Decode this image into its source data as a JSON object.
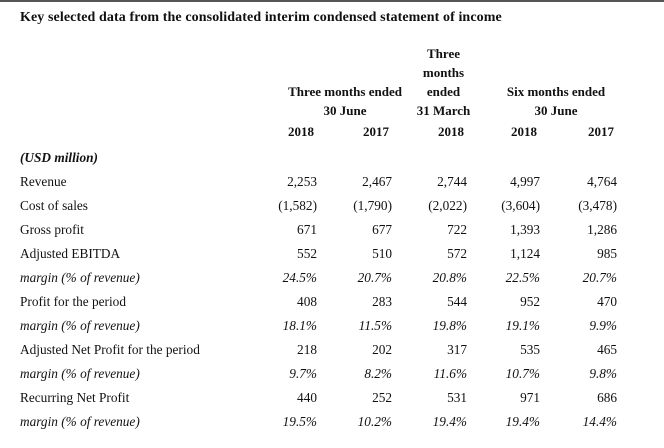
{
  "title": "Key selected data from the consolidated interim condensed statement of income",
  "table": {
    "header": {
      "groups": [
        {
          "lines": [
            "Three months ended",
            "30 June"
          ]
        },
        {
          "lines": [
            "Three",
            "months",
            "ended",
            "31 March"
          ]
        },
        {
          "lines": [
            "Six months ended",
            "30 June"
          ]
        }
      ],
      "years": [
        "2018",
        "2017",
        "2018",
        "2018",
        "2017"
      ]
    },
    "rows": [
      {
        "label": "(USD million)",
        "style": "unit",
        "values": [
          "",
          "",
          "",
          "",
          ""
        ]
      },
      {
        "label": "Revenue",
        "style": "normal",
        "values": [
          "2,253",
          "2,467",
          "2,744",
          "4,997",
          "4,764"
        ]
      },
      {
        "label": "Cost of sales",
        "style": "normal",
        "values": [
          "(1,582)",
          "(1,790)",
          "(2,022)",
          "(3,604)",
          "(3,478)"
        ]
      },
      {
        "label": "Gross profit",
        "style": "normal",
        "values": [
          "671",
          "677",
          "722",
          "1,393",
          "1,286"
        ]
      },
      {
        "label": "Adjusted EBITDA",
        "style": "normal",
        "values": [
          "552",
          "510",
          "572",
          "1,124",
          "985"
        ]
      },
      {
        "label": "margin (% of revenue)",
        "style": "italic",
        "values": [
          "24.5%",
          "20.7%",
          "20.8%",
          "22.5%",
          "20.7%"
        ]
      },
      {
        "label": "Profit for the period",
        "style": "normal",
        "values": [
          "408",
          "283",
          "544",
          "952",
          "470"
        ]
      },
      {
        "label": "margin (% of revenue)",
        "style": "italic",
        "values": [
          "18.1%",
          "11.5%",
          "19.8%",
          "19.1%",
          "9.9%"
        ]
      },
      {
        "label": "Adjusted Net Profit for the period",
        "style": "normal",
        "values": [
          "218",
          "202",
          "317",
          "535",
          "465"
        ]
      },
      {
        "label": "margin (% of revenue)",
        "style": "italic",
        "values": [
          "9.7%",
          "8.2%",
          "11.6%",
          "10.7%",
          "9.8%"
        ]
      },
      {
        "label": "Recurring Net Profit",
        "style": "normal",
        "values": [
          "440",
          "252",
          "531",
          "971",
          "686"
        ]
      },
      {
        "label": "margin (% of revenue)",
        "style": "italic",
        "values": [
          "19.5%",
          "10.2%",
          "19.4%",
          "19.4%",
          "14.4%"
        ]
      }
    ]
  }
}
